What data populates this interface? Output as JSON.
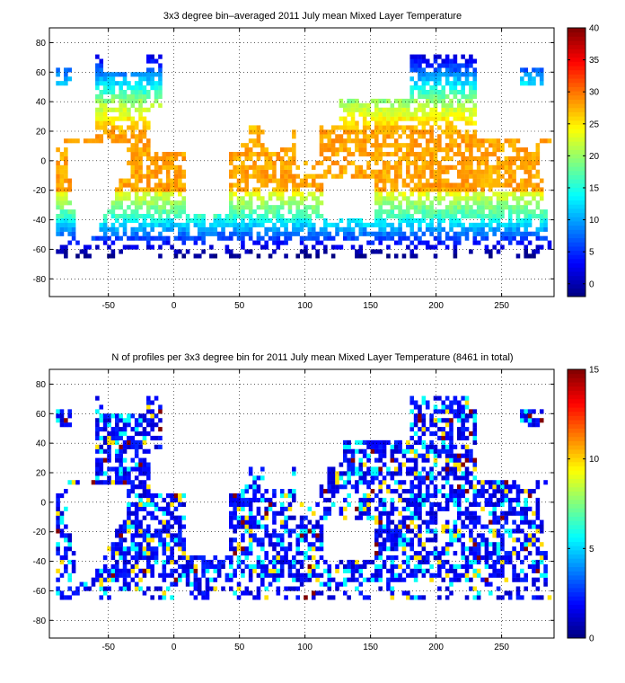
{
  "chart_data": [
    {
      "type": "heatmap",
      "title": "3x3 degree bin–averaged 2011 July mean Mixed Layer Temperature",
      "xlim": [
        -95,
        290
      ],
      "ylim": [
        -92,
        90
      ],
      "x_ticks": [
        -50,
        0,
        50,
        100,
        150,
        200,
        250
      ],
      "y_ticks": [
        -80,
        -60,
        -40,
        -20,
        0,
        20,
        40,
        60,
        80
      ],
      "grid": true,
      "bin_size_deg": 3,
      "colorbar": {
        "min": -2,
        "max": 40,
        "ticks": [
          0,
          5,
          10,
          15,
          20,
          25,
          30,
          35,
          40
        ]
      },
      "values_description_by_latitude": [
        {
          "lat_range": [
            -20,
            20
          ],
          "value": 28
        },
        {
          "lat_range": [
            20,
            40
          ],
          "value": 24
        },
        {
          "lat_range": [
            -40,
            -20
          ],
          "value": 18
        },
        {
          "lat_range": [
            40,
            60
          ],
          "value": 12
        },
        {
          "lat_range": [
            -60,
            -40
          ],
          "value": 6
        },
        {
          "lat_range": [
            -90,
            -60
          ],
          "value": 0
        }
      ]
    },
    {
      "type": "heatmap",
      "title": "N of profiles per 3x3 degree bin for 2011 July mean Mixed Layer Temperature  (8461 in total)",
      "xlim": [
        -95,
        290
      ],
      "ylim": [
        -92,
        90
      ],
      "x_ticks": [
        -50,
        0,
        50,
        100,
        150,
        200,
        250
      ],
      "y_ticks": [
        -80,
        -60,
        -40,
        -20,
        0,
        20,
        40,
        60,
        80
      ],
      "grid": true,
      "bin_size_deg": 3,
      "total_profiles": 8461,
      "colorbar": {
        "min": 0,
        "max": 15,
        "ticks": [
          0,
          5,
          10,
          15
        ]
      },
      "typical_count": 2,
      "max_count": 15
    }
  ]
}
